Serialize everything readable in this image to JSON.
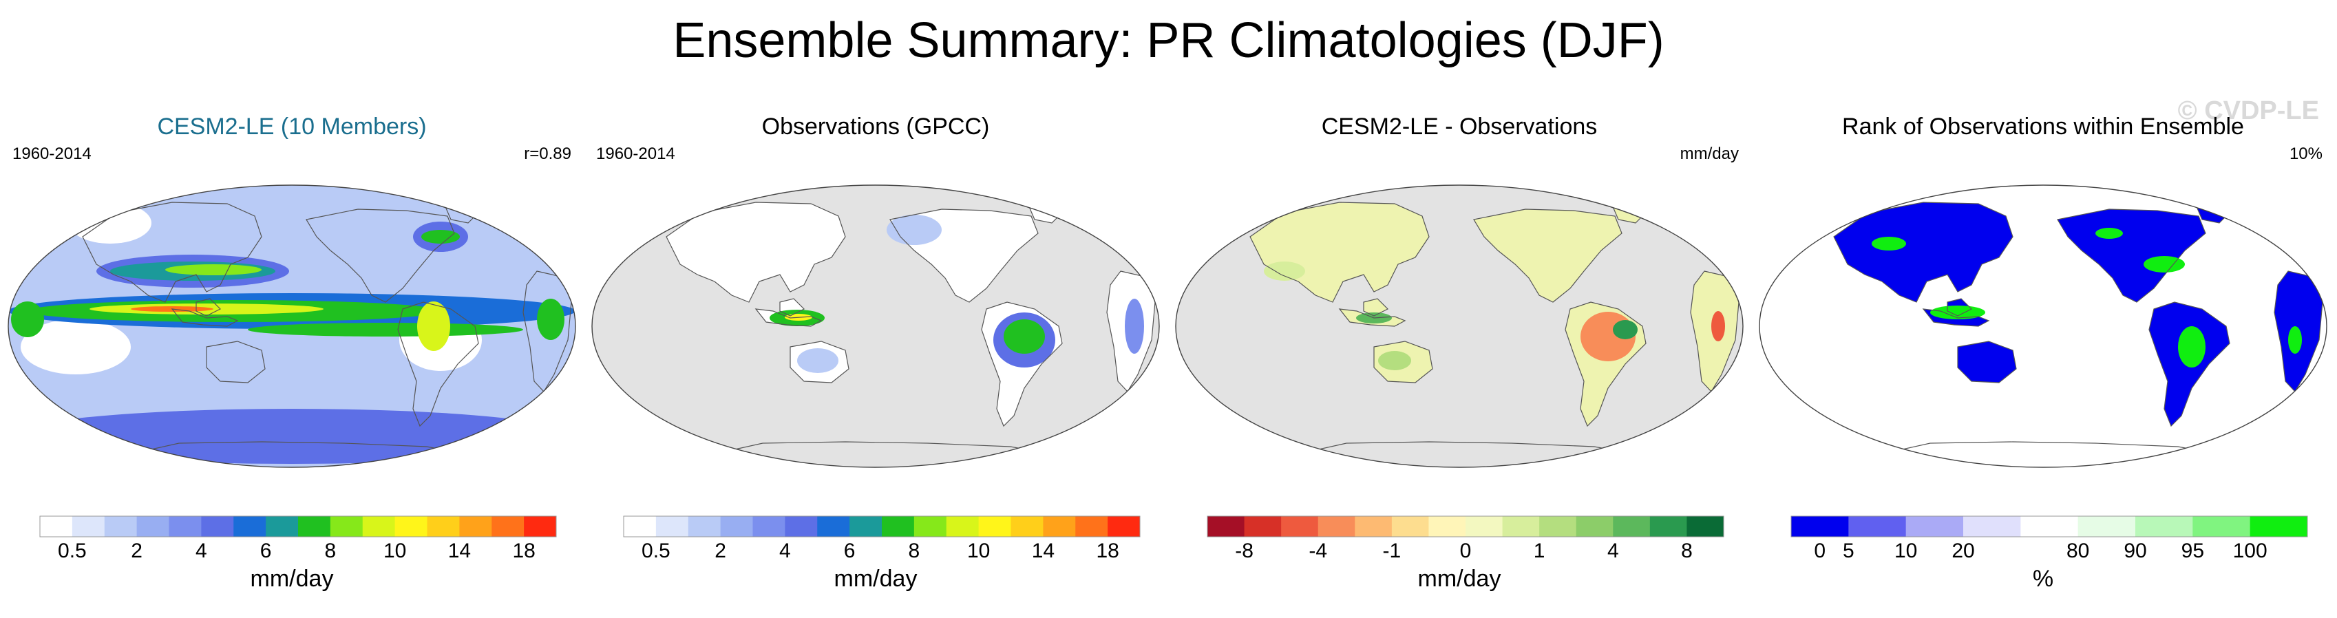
{
  "title": "Ensemble Summary: PR Climatologies (DJF)",
  "watermark": "© CVDP-LE",
  "panels": [
    {
      "id": "model",
      "title": "CESM2-LE (10 Members)",
      "title_color": "#1a6e8e",
      "left_label": "1960-2014",
      "right_label": "r=0.89",
      "colorbar": {
        "colors": [
          "#ffffff",
          "#dde6fb",
          "#b9cbf6",
          "#98aef2",
          "#7b8fee",
          "#5d6fe6",
          "#1a6dd8",
          "#1b9a9a",
          "#20c020",
          "#86e81a",
          "#d8f51a",
          "#fff51a",
          "#ffcf1a",
          "#ffa21a",
          "#ff721a",
          "#ff2a10"
        ],
        "labels": [
          "0.5",
          "2",
          "4",
          "6",
          "8",
          "10",
          "14",
          "18"
        ],
        "units": "mm/day"
      }
    },
    {
      "id": "obs",
      "title": "Observations (GPCC)",
      "title_color": "#000000",
      "left_label": "1960-2014",
      "right_label": "",
      "colorbar": {
        "colors": [
          "#ffffff",
          "#dde6fb",
          "#b9cbf6",
          "#98aef2",
          "#7b8fee",
          "#5d6fe6",
          "#1a6dd8",
          "#1b9a9a",
          "#20c020",
          "#86e81a",
          "#d8f51a",
          "#fff51a",
          "#ffcf1a",
          "#ffa21a",
          "#ff721a",
          "#ff2a10"
        ],
        "labels": [
          "0.5",
          "2",
          "4",
          "6",
          "8",
          "10",
          "14",
          "18"
        ],
        "units": "mm/day"
      }
    },
    {
      "id": "diff",
      "title": "CESM2-LE - Observations",
      "title_color": "#000000",
      "left_label": "",
      "right_label": "mm/day",
      "colorbar": {
        "colors": [
          "#a50f26",
          "#d73027",
          "#ee5a3e",
          "#f88d59",
          "#fdba72",
          "#fddd8f",
          "#fff5b8",
          "#f3f8c0",
          "#d7ee9c",
          "#b4de7f",
          "#8ccd69",
          "#5cb85c",
          "#2a9a4f",
          "#0a6b36"
        ],
        "labels": [
          "-8",
          "-4",
          "-1",
          "0",
          "1",
          "4",
          "8"
        ],
        "units": "mm/day"
      }
    },
    {
      "id": "rank",
      "title": "Rank of Observations within Ensemble",
      "title_color": "#000000",
      "left_label": "",
      "right_label": "10%",
      "colorbar": {
        "colors": [
          "#0000ee",
          "#6060f0",
          "#aaaaf6",
          "#e0e0fc",
          "#ffffff",
          "#e6fce6",
          "#b8f8b8",
          "#80f480",
          "#10ee10"
        ],
        "labels": [
          "0",
          "5",
          "10",
          "20",
          "80",
          "90",
          "95",
          "100"
        ],
        "units": "%"
      }
    }
  ]
}
